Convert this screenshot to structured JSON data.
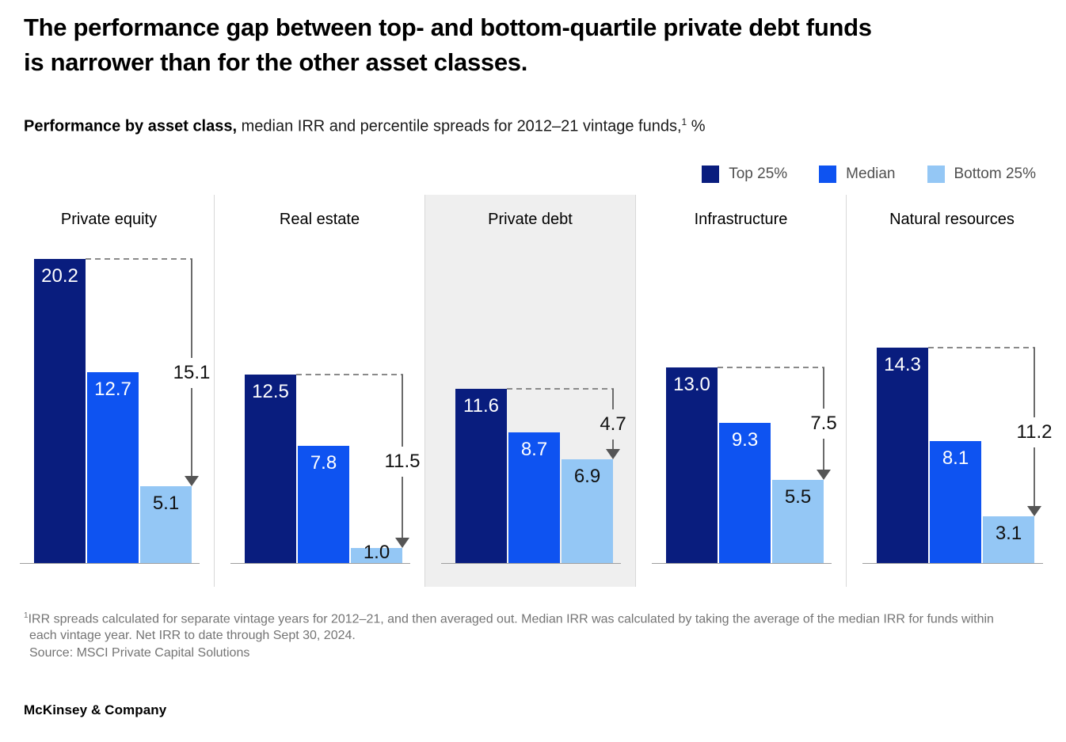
{
  "header": {
    "title_lines": [
      "The performance gap between top- and bottom-quartile private debt funds",
      "is narrower than for the other asset classes."
    ],
    "subtitle_bold": "Performance by asset class,",
    "subtitle_rest": " median IRR and percentile spreads for 2012–21 vintage funds,",
    "subtitle_superscript": "1",
    "subtitle_suffix": " %"
  },
  "legend": {
    "items": [
      "Top 25%",
      "Median",
      "Bottom 25%"
    ]
  },
  "chart_data": {
    "type": "bar",
    "title": "Performance by asset class, median IRR and percentile spreads for 2012–21 vintage funds, %",
    "unit": "%",
    "series_names": [
      "Top 25%",
      "Median",
      "Bottom 25%"
    ],
    "series_colors": [
      "#091d7e",
      "#0e53f1",
      "#94c7f5"
    ],
    "bar_label_colors": [
      "#ffffff",
      "#ffffff",
      "#111111"
    ],
    "highlight_bg": "#efefef",
    "categories": [
      "Private equity",
      "Real estate",
      "Private debt",
      "Infrastructure",
      "Natural resources"
    ],
    "panels": [
      {
        "category": "Private equity",
        "highlighted": false,
        "bars": [
          {
            "series": "Top 25%",
            "value": 20.2,
            "label": "20.2"
          },
          {
            "series": "Median",
            "value": 12.7,
            "label": "12.7"
          },
          {
            "series": "Bottom 25%",
            "value": 5.1,
            "label": "5.1"
          }
        ],
        "spread": {
          "value": 15.1,
          "label": "15.1"
        }
      },
      {
        "category": "Real estate",
        "highlighted": false,
        "bars": [
          {
            "series": "Top 25%",
            "value": 12.5,
            "label": "12.5"
          },
          {
            "series": "Median",
            "value": 7.8,
            "label": "7.8"
          },
          {
            "series": "Bottom 25%",
            "value": 1.0,
            "label": "1.0"
          }
        ],
        "spread": {
          "value": 11.5,
          "label": "11.5"
        }
      },
      {
        "category": "Private debt",
        "highlighted": true,
        "bars": [
          {
            "series": "Top 25%",
            "value": 11.6,
            "label": "11.6"
          },
          {
            "series": "Median",
            "value": 8.7,
            "label": "8.7"
          },
          {
            "series": "Bottom 25%",
            "value": 6.9,
            "label": "6.9"
          }
        ],
        "spread": {
          "value": 4.7,
          "label": "4.7"
        }
      },
      {
        "category": "Infrastructure",
        "highlighted": false,
        "bars": [
          {
            "series": "Top 25%",
            "value": 13.0,
            "label": "13.0"
          },
          {
            "series": "Median",
            "value": 9.3,
            "label": "9.3"
          },
          {
            "series": "Bottom 25%",
            "value": 5.5,
            "label": "5.5"
          }
        ],
        "spread": {
          "value": 7.5,
          "label": "7.5"
        }
      },
      {
        "category": "Natural resources",
        "highlighted": false,
        "bars": [
          {
            "series": "Top 25%",
            "value": 14.3,
            "label": "14.3"
          },
          {
            "series": "Median",
            "value": 8.1,
            "label": "8.1"
          },
          {
            "series": "Bottom 25%",
            "value": 3.1,
            "label": "3.1"
          }
        ],
        "spread": {
          "value": 11.2,
          "label": "11.2"
        }
      }
    ]
  },
  "footnotes": {
    "superscript": "1",
    "note": "IRR spreads calculated for separate vintage years for 2012–21, and then averaged out. Median IRR was calculated by taking the average of the median IRR for funds within each vintage year. Net IRR to date through Sept 30, 2024.",
    "source": "Source: MSCI Private Capital Solutions"
  },
  "branding": {
    "logo_text": "McKinsey & Company"
  }
}
